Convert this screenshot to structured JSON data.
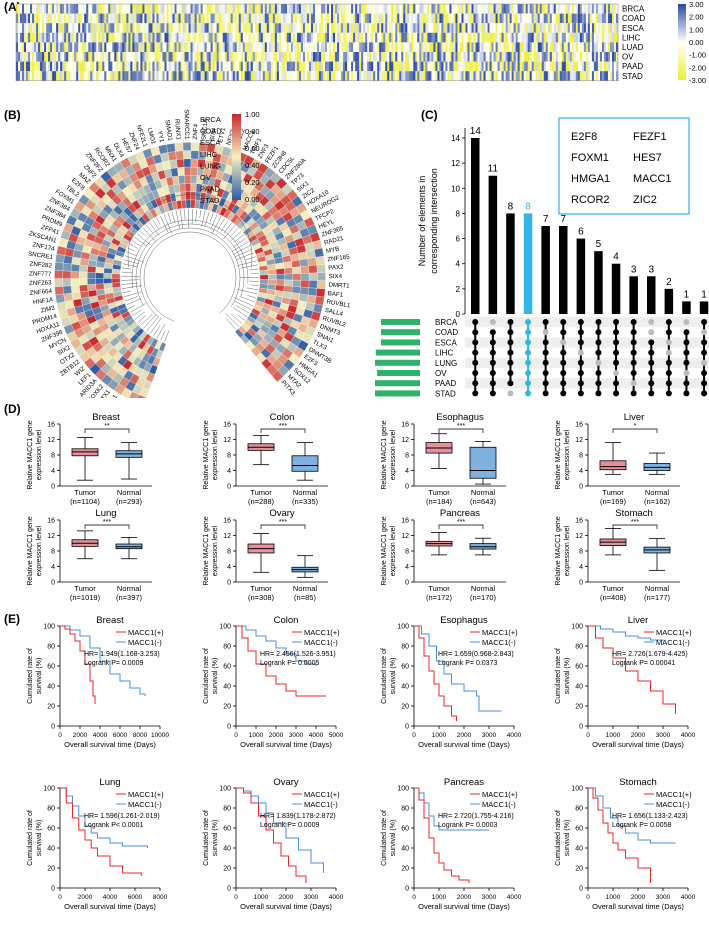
{
  "panel_labels": {
    "a": "(A)",
    "b": "(B)",
    "c": "(C)",
    "d": "(D)",
    "e": "(E)"
  },
  "cancers": [
    "BRCA",
    "COAD",
    "ESCA",
    "LIHC",
    "LUAD",
    "OV",
    "PAAD",
    "STAD"
  ],
  "colors": {
    "high": "#2b4aa0",
    "mid": "#ffffff",
    "low": "#eeee3a",
    "tumor": "#e8909a",
    "normal": "#7fb0de",
    "pos": "#e8262c",
    "neg": "#4a90d8",
    "bar_highlight": "#33b5e5",
    "green": "#2db36a"
  },
  "panel_a": {
    "scale_ticks": [
      "3.00",
      "2.00",
      "1.00",
      "0.00",
      "-1.00",
      "-2.00",
      "-3.00"
    ]
  },
  "panel_b": {
    "legend_rows": [
      "BRCA",
      "COAD",
      "ESCA",
      "LIHC",
      "LUNG",
      "OV",
      "PAAD",
      "STAD"
    ],
    "scale_ticks": [
      "1.00",
      "0.80",
      "0.60",
      "0.40",
      "0.20",
      "0.00"
    ],
    "genes": [
      "ZNF138",
      "ZNF260",
      "ZNF184",
      "MTA1",
      "OTX1",
      "FOXK2",
      "ARID3A",
      "LEF1",
      "WIZ",
      "ZBTB12",
      "OTX2",
      "SIX2",
      "MYCN",
      "ZNF398",
      "HOXA11",
      "PRDM14",
      "ZIM3",
      "HNF1A",
      "ZNF664",
      "ZNF263",
      "ZNF777",
      "ZNF282",
      "SNCRE1",
      "ZNF174",
      "ZKSCAN1",
      "ZFP41",
      "PRDM9",
      "ZNF384",
      "ZNF384",
      "FOXM1",
      "TBL2",
      "E2F8",
      "MAZ",
      "ZNF2",
      "ZNF2FZ",
      "RCOR2",
      "MNX1",
      "DLX4",
      "HES7",
      "ZNF24",
      "NFE2L1",
      "LMO1",
      "YY1",
      "SMAD1",
      "RUNX1",
      "SMARCC1",
      "ZNF4",
      "SMC1A",
      "SIX4",
      "ETV1",
      "NFY2",
      "ASCL2",
      "MACC1",
      "TGIF1",
      "ZNF3",
      "FEZF1",
      "ZC3H8",
      "CDC5L",
      "ZNF280A",
      "TP73",
      "SIX1",
      "ZIC2",
      "HOXA10",
      "NEUROG2",
      "TFCP2",
      "HEYL",
      "ZNF365",
      "RAD21",
      "MYB",
      "ZNF165",
      "PAX2",
      "SIX4",
      "DMRT1",
      "BAF1",
      "RUVBL1",
      "SALL4",
      "RUVBL2",
      "DNMT3",
      "SNAI1",
      "TLX3",
      "DNMT3B",
      "E2F3",
      "HMGA1",
      "SOX12",
      "MTA2",
      "PITX3"
    ]
  },
  "panel_c": {
    "ylabel_line1": "Number of elements in",
    "ylabel_line2": "corresponding intersection",
    "bars": [
      14,
      11,
      8,
      8,
      7,
      7,
      6,
      5,
      4,
      3,
      3,
      2,
      1,
      1
    ],
    "highlight_index": 3,
    "yticks": [
      "0",
      "2",
      "4",
      "6",
      "8",
      "10",
      "12",
      "14"
    ],
    "set_sizes": [
      60,
      60,
      60,
      68,
      73,
      66,
      78,
      72
    ],
    "set_axis_ticks": [
      "80",
      "60",
      "40",
      "20",
      "0"
    ],
    "boxed_genes": [
      "E2F8",
      "FEZF1",
      "FOXM1",
      "HES7",
      "HMGA1",
      "MACC1",
      "RCOR2",
      "ZIC2"
    ]
  },
  "panel_d": {
    "ylabel_line1": "Relative MACC1 gene",
    "ylabel_line2": "expression level",
    "yticks": [
      "0",
      "4",
      "8",
      "12",
      "16"
    ],
    "tumor_label": "Tumor",
    "normal_label": "Normal",
    "plots": [
      {
        "title": "Breast",
        "sig": "**",
        "tumor_n": "(n=1104)",
        "normal_n": "(n=293)",
        "tumor": [
          1.5,
          7.8,
          8.8,
          9.6,
          12.5
        ],
        "normal": [
          1.8,
          7.4,
          8.3,
          9.1,
          11.2
        ]
      },
      {
        "title": "Colon",
        "sig": "***",
        "tumor_n": "(n=288)",
        "normal_n": "(n=335)",
        "tumor": [
          5.5,
          9.2,
          10.0,
          10.9,
          13.0
        ],
        "normal": [
          1.5,
          3.8,
          5.3,
          7.8,
          11.2
        ]
      },
      {
        "title": "Esophagus",
        "sig": "***",
        "tumor_n": "(n=184)",
        "normal_n": "(n=643)",
        "tumor": [
          4.5,
          8.5,
          9.8,
          11.2,
          13.5
        ],
        "normal": [
          0.5,
          2.0,
          4.0,
          10.0,
          11.5
        ]
      },
      {
        "title": "Liver",
        "sig": "*",
        "tumor_n": "(n=169)",
        "normal_n": "(n=162)",
        "tumor": [
          3.0,
          4.2,
          5.0,
          6.5,
          11.2
        ],
        "normal": [
          3.0,
          4.0,
          4.8,
          5.8,
          8.5
        ]
      },
      {
        "title": "Lung",
        "sig": "***",
        "tumor_n": "(n=1019)",
        "normal_n": "(n=397)",
        "tumor": [
          6.0,
          9.2,
          10.0,
          10.9,
          13.2
        ],
        "normal": [
          6.0,
          8.6,
          9.1,
          9.8,
          11.5
        ]
      },
      {
        "title": "Ovary",
        "sig": "***",
        "tumor_n": "(n=308)",
        "normal_n": "(n=85)",
        "tumor": [
          2.5,
          7.5,
          8.6,
          9.8,
          12.5
        ],
        "normal": [
          1.2,
          2.6,
          3.2,
          3.8,
          6.8
        ]
      },
      {
        "title": "Pancreas",
        "sig": "***",
        "tumor_n": "(n=172)",
        "normal_n": "(n=170)",
        "tumor": [
          7.0,
          9.3,
          9.9,
          10.5,
          12.8
        ],
        "normal": [
          7.0,
          8.5,
          9.1,
          9.9,
          11.3
        ]
      },
      {
        "title": "Stomach",
        "sig": "***",
        "tumor_n": "(n=408)",
        "normal_n": "(n=177)",
        "tumor": [
          7.0,
          9.4,
          10.3,
          11.1,
          13.8
        ],
        "normal": [
          3.0,
          7.5,
          8.3,
          9.0,
          11.2
        ]
      }
    ]
  },
  "panel_e": {
    "ylabel_line1": "Cumulated rate of",
    "ylabel_line2": "survival (%)",
    "xlabel": "Overall survival time (Days)",
    "yticks": [
      "0",
      "20",
      "40",
      "60",
      "80",
      "100"
    ],
    "legend_pos": "MACC1(+)",
    "legend_neg": "MACC1(-)",
    "plots": [
      {
        "title": "Breast",
        "hr": "HR= 1.949(1.168-3.253)",
        "p": "Logrank P= 0.0009",
        "xmax": 10000,
        "xticks": [
          "0",
          "2000",
          "4000",
          "6000",
          "8000",
          "10000"
        ],
        "pos": [
          [
            0,
            100
          ],
          [
            500,
            97
          ],
          [
            1000,
            92
          ],
          [
            1500,
            85
          ],
          [
            2000,
            75
          ],
          [
            2500,
            62
          ],
          [
            3000,
            45
          ],
          [
            3300,
            30
          ],
          [
            3500,
            22
          ]
        ],
        "neg": [
          [
            0,
            100
          ],
          [
            1000,
            96
          ],
          [
            2000,
            90
          ],
          [
            3000,
            78
          ],
          [
            4000,
            65
          ],
          [
            5000,
            52
          ],
          [
            6000,
            45
          ],
          [
            7000,
            38
          ],
          [
            8000,
            32
          ],
          [
            8500,
            30
          ]
        ]
      },
      {
        "title": "Colon",
        "hr": "HR= 2.456(1.526-3.951)",
        "p": "Logrank P= 0.0005",
        "xmax": 5000,
        "xticks": [
          "0",
          "1000",
          "2000",
          "3000",
          "4000",
          "5000"
        ],
        "pos": [
          [
            0,
            100
          ],
          [
            300,
            88
          ],
          [
            600,
            75
          ],
          [
            1000,
            62
          ],
          [
            1500,
            50
          ],
          [
            2000,
            42
          ],
          [
            2500,
            35
          ],
          [
            3000,
            30
          ],
          [
            4000,
            30
          ],
          [
            4500,
            30
          ]
        ],
        "neg": [
          [
            0,
            100
          ],
          [
            500,
            96
          ],
          [
            1000,
            90
          ],
          [
            1500,
            85
          ],
          [
            2000,
            78
          ],
          [
            2500,
            72
          ],
          [
            3000,
            65
          ],
          [
            3500,
            62
          ],
          [
            4000,
            60
          ]
        ]
      },
      {
        "title": "Esophagus",
        "hr": "HR= 1.659(0.968-2.843)",
        "p": "Logrank P= 0.0373",
        "xmax": 4000,
        "xticks": [
          "0",
          "1000",
          "2000",
          "3000",
          "4000"
        ],
        "pos": [
          [
            0,
            100
          ],
          [
            200,
            88
          ],
          [
            400,
            70
          ],
          [
            600,
            55
          ],
          [
            800,
            42
          ],
          [
            1000,
            30
          ],
          [
            1200,
            20
          ],
          [
            1500,
            10
          ],
          [
            1700,
            5
          ]
        ],
        "neg": [
          [
            0,
            100
          ],
          [
            300,
            92
          ],
          [
            600,
            80
          ],
          [
            900,
            65
          ],
          [
            1200,
            52
          ],
          [
            1500,
            42
          ],
          [
            2000,
            35
          ],
          [
            2500,
            30
          ],
          [
            2600,
            15
          ],
          [
            3500,
            15
          ]
        ]
      },
      {
        "title": "Liver",
        "hr": "HR= 2.726(1.679-4.425)",
        "p": "Logrank P= 0.00041",
        "xmax": 4000,
        "xticks": [
          "0",
          "1000",
          "2000",
          "3000",
          "4000"
        ],
        "pos": [
          [
            0,
            100
          ],
          [
            300,
            88
          ],
          [
            600,
            78
          ],
          [
            1000,
            68
          ],
          [
            1500,
            55
          ],
          [
            2000,
            45
          ],
          [
            2500,
            35
          ],
          [
            3000,
            22
          ],
          [
            3500,
            12
          ]
        ],
        "neg": [
          [
            0,
            100
          ],
          [
            500,
            97
          ],
          [
            1000,
            94
          ],
          [
            1500,
            90
          ],
          [
            2000,
            88
          ],
          [
            2500,
            86
          ],
          [
            3000,
            85
          ]
        ]
      },
      {
        "title": "Lung",
        "hr": "HR= 1.596(1.261-2.019)",
        "p": "Logrank P< 0.0001",
        "xmax": 8000,
        "xticks": [
          "0",
          "2000",
          "4000",
          "6000",
          "8000"
        ],
        "pos": [
          [
            0,
            100
          ],
          [
            500,
            85
          ],
          [
            1000,
            70
          ],
          [
            1500,
            58
          ],
          [
            2000,
            48
          ],
          [
            2500,
            40
          ],
          [
            3000,
            32
          ],
          [
            4000,
            22
          ],
          [
            5000,
            15
          ],
          [
            6500,
            12
          ]
        ],
        "neg": [
          [
            0,
            100
          ],
          [
            500,
            92
          ],
          [
            1000,
            82
          ],
          [
            1500,
            72
          ],
          [
            2000,
            62
          ],
          [
            2500,
            55
          ],
          [
            3000,
            50
          ],
          [
            4000,
            45
          ],
          [
            5000,
            42
          ],
          [
            7000,
            40
          ]
        ]
      },
      {
        "title": "Ovary",
        "hr": "HR= 1.839(1.178-2.872)",
        "p": "Logrank P= 0.0009",
        "xmax": 4000,
        "xticks": [
          "0",
          "1000",
          "2000",
          "3000",
          "4000"
        ],
        "pos": [
          [
            0,
            100
          ],
          [
            300,
            95
          ],
          [
            600,
            85
          ],
          [
            900,
            72
          ],
          [
            1200,
            58
          ],
          [
            1500,
            45
          ],
          [
            1800,
            32
          ],
          [
            2100,
            22
          ],
          [
            2400,
            12
          ],
          [
            2800,
            5
          ]
        ],
        "neg": [
          [
            0,
            100
          ],
          [
            300,
            97
          ],
          [
            600,
            92
          ],
          [
            900,
            85
          ],
          [
            1200,
            75
          ],
          [
            1500,
            65
          ],
          [
            2000,
            50
          ],
          [
            2500,
            38
          ],
          [
            3000,
            25
          ],
          [
            3500,
            15
          ]
        ]
      },
      {
        "title": "Pancreas",
        "hr": "HR= 2.720(1.755-4.216)",
        "p": "Logrank P= 0.0003",
        "xmax": 4000,
        "xticks": [
          "0",
          "1000",
          "2000",
          "3000",
          "4000"
        ],
        "pos": [
          [
            0,
            100
          ],
          [
            200,
            88
          ],
          [
            400,
            70
          ],
          [
            600,
            50
          ],
          [
            800,
            35
          ],
          [
            1000,
            25
          ],
          [
            1200,
            18
          ],
          [
            1500,
            12
          ],
          [
            1800,
            8
          ],
          [
            2200,
            5
          ]
        ],
        "neg": [
          [
            0,
            100
          ],
          [
            200,
            95
          ],
          [
            400,
            85
          ],
          [
            600,
            72
          ],
          [
            800,
            62
          ],
          [
            1000,
            58
          ],
          [
            2000,
            58
          ],
          [
            3000,
            58
          ]
        ]
      },
      {
        "title": "Stomach",
        "hr": "HR= 1.656(1.133-2.423)",
        "p": "Logrank P= 0.0058",
        "xmax": 4000,
        "xticks": [
          "0",
          "1000",
          "2000",
          "3000",
          "4000"
        ],
        "pos": [
          [
            0,
            100
          ],
          [
            200,
            90
          ],
          [
            400,
            78
          ],
          [
            600,
            65
          ],
          [
            800,
            55
          ],
          [
            1000,
            45
          ],
          [
            1200,
            38
          ],
          [
            1500,
            30
          ],
          [
            2000,
            20
          ],
          [
            2500,
            5
          ]
        ],
        "neg": [
          [
            0,
            100
          ],
          [
            300,
            92
          ],
          [
            600,
            80
          ],
          [
            900,
            70
          ],
          [
            1200,
            62
          ],
          [
            1500,
            55
          ],
          [
            2000,
            48
          ],
          [
            2500,
            45
          ],
          [
            3000,
            45
          ],
          [
            3500,
            45
          ]
        ]
      }
    ]
  }
}
